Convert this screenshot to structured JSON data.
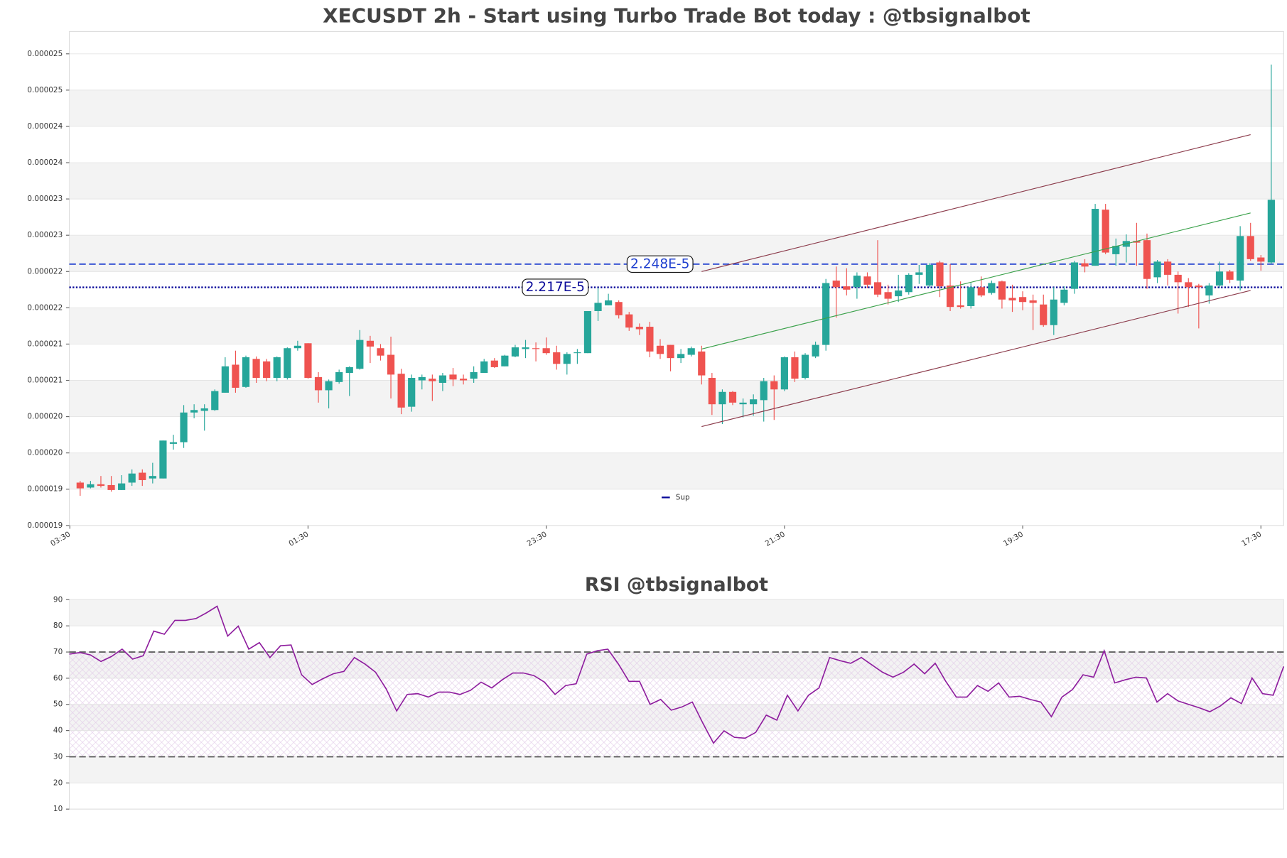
{
  "chart_data": [
    {
      "type": "candlestick",
      "title": "XECUSDT 2h - Start using Turbo Trade Bot today : @tbsignalbot",
      "up_color": "#26a69a",
      "down_color": "#ef5350",
      "open": [
        1.9565e-05,
        1.9499e-05,
        1.9543e-05,
        1.9532e-05,
        1.9466e-05,
        1.9565e-05,
        1.9697e-05,
        1.962e-05,
        1.962e-05,
        2.0082e-05,
        2.0104e-05,
        2.05e-05,
        2.0522e-05,
        2.0533e-05,
        2.0764e-05,
        2.1138e-05,
        2.0841e-05,
        2.1215e-05,
        2.1182e-05,
        2.0962e-05,
        2.0962e-05,
        2.1358e-05,
        2.1424e-05,
        2.0973e-05,
        2.0797e-05,
        2.0907e-05,
        2.1028e-05,
        2.1083e-05,
        2.1457e-05,
        2.1358e-05,
        2.127e-05,
        2.1017e-05,
        2.0577e-05,
        2.0929e-05,
        2.0951e-05,
        2.0896e-05,
        2.1006e-05,
        2.0951e-05,
        2.0951e-05,
        2.1028e-05,
        2.1193e-05,
        2.1116e-05,
        2.1248e-05,
        2.1347e-05,
        2.1358e-05,
        2.1358e-05,
        2.1303e-05,
        2.1149e-05,
        2.1292e-05,
        2.1292e-05,
        2.1853e-05,
        2.193e-05,
        2.1974e-05,
        2.1809e-05,
        2.1644e-05,
        2.1644e-05,
        2.1391e-05,
        2.1402e-05,
        2.1226e-05,
        2.127e-05,
        2.1314e-05,
        2.0962e-05,
        2.061e-05,
        2.0775e-05,
        2.061e-05,
        2.061e-05,
        2.0665e-05,
        2.0918e-05,
        2.0808e-05,
        2.1237e-05,
        2.0962e-05,
        2.1248e-05,
        2.1402e-05,
        2.226e-05,
        2.2183e-05,
        2.2172e-05,
        2.2315e-05,
        2.2238e-05,
        2.2106e-05,
        2.2051e-05,
        2.2106e-05,
        2.2337e-05,
        2.2194e-05,
        2.2502e-05,
        2.2194e-05,
        2.193e-05,
        2.1919e-05,
        2.2172e-05,
        2.2095e-05,
        2.2249e-05,
        2.2029e-05,
        2.204e-05,
        2.1996e-05,
        2.1941e-05,
        2.1666e-05,
        2.1963e-05,
        2.215e-05,
        2.2491e-05,
        2.2458e-05,
        2.3206e-05,
        2.2612e-05,
        2.2711e-05,
        2.2788e-05,
        2.2799e-05,
        2.2304e-05,
        2.2513e-05,
        2.2337e-05,
        2.2238e-05,
        2.2194e-05,
        2.2062e-05,
        2.2194e-05,
        2.2381e-05,
        2.226e-05,
        2.2854e-05,
        2.2568e-05,
        2.2502e-05
      ],
      "high": [
        1.9587e-05,
        1.9587e-05,
        1.9653e-05,
        1.9653e-05,
        1.9664e-05,
        1.9741e-05,
        1.9741e-05,
        1.9829e-05,
        2.0126e-05,
        2.0203e-05,
        2.0599e-05,
        2.061e-05,
        2.061e-05,
        2.0808e-05,
        2.1237e-05,
        2.1325e-05,
        2.1259e-05,
        2.1248e-05,
        2.1215e-05,
        2.1248e-05,
        2.1369e-05,
        2.1457e-05,
        2.1424e-05,
        2.1039e-05,
        2.094e-05,
        2.1072e-05,
        2.1116e-05,
        2.16e-05,
        2.1523e-05,
        2.1413e-05,
        2.1512e-05,
        2.1083e-05,
        2.1006e-05,
        2.1006e-05,
        2.1006e-05,
        2.1028e-05,
        2.1094e-05,
        2.1006e-05,
        2.1116e-05,
        2.1215e-05,
        2.1226e-05,
        2.127e-05,
        2.1402e-05,
        2.1468e-05,
        2.1435e-05,
        2.1501e-05,
        2.1391e-05,
        2.1303e-05,
        2.1347e-05,
        2.1853e-05,
        2.2161e-05,
        2.2084e-05,
        2.1996e-05,
        2.1842e-05,
        2.1688e-05,
        2.171e-05,
        2.1479e-05,
        2.1402e-05,
        2.1347e-05,
        2.138e-05,
        2.1391e-05,
        2.1028e-05,
        2.0808e-05,
        2.0786e-05,
        2.0687e-05,
        2.0742e-05,
        2.0962e-05,
        2.0995e-05,
        2.1248e-05,
        2.1314e-05,
        2.1292e-05,
        2.1446e-05,
        2.2282e-05,
        2.2447e-05,
        2.2425e-05,
        2.237e-05,
        2.237e-05,
        2.2799e-05,
        2.2205e-05,
        2.2337e-05,
        2.2359e-05,
        2.2469e-05,
        2.2491e-05,
        2.2524e-05,
        2.248e-05,
        2.2249e-05,
        2.2227e-05,
        2.2315e-05,
        2.226e-05,
        2.226e-05,
        2.2205e-05,
        2.2117e-05,
        2.2073e-05,
        2.2073e-05,
        2.2172e-05,
        2.2183e-05,
        2.2524e-05,
        2.2546e-05,
        2.3283e-05,
        2.3283e-05,
        2.2821e-05,
        2.2876e-05,
        2.303e-05,
        2.2887e-05,
        2.2535e-05,
        2.2546e-05,
        2.2381e-05,
        2.2293e-05,
        2.2216e-05,
        2.2227e-05,
        2.2513e-05,
        2.2403e-05,
        2.2986e-05,
        2.303e-05,
        2.2601e-05,
        2.5142e-05
      ],
      "low": [
        1.9389e-05,
        1.9488e-05,
        1.9499e-05,
        1.9444e-05,
        1.9466e-05,
        1.9521e-05,
        1.9521e-05,
        1.9554e-05,
        1.962e-05,
        2.0005e-05,
        2.0027e-05,
        2.0423e-05,
        2.0258e-05,
        2.0522e-05,
        2.0764e-05,
        2.0764e-05,
        2.083e-05,
        2.0896e-05,
        2.0918e-05,
        2.0918e-05,
        2.094e-05,
        2.1325e-05,
        2.0951e-05,
        2.0632e-05,
        2.0555e-05,
        2.0885e-05,
        2.072e-05,
        2.1072e-05,
        2.116e-05,
        2.1193e-05,
        2.0687e-05,
        2.0478e-05,
        2.0511e-05,
        2.0808e-05,
        2.0654e-05,
        2.0786e-05,
        2.0852e-05,
        2.0874e-05,
        2.0896e-05,
        2.1028e-05,
        2.1094e-05,
        2.1116e-05,
        2.1237e-05,
        2.1226e-05,
        2.1182e-05,
        2.127e-05,
        2.1072e-05,
        2.1006e-05,
        2.1149e-05,
        2.1292e-05,
        2.1721e-05,
        2.193e-05,
        2.1754e-05,
        2.1589e-05,
        2.1534e-05,
        2.1237e-05,
        2.1215e-05,
        2.105e-05,
        2.116e-05,
        2.1248e-05,
        2.0874e-05,
        2.0467e-05,
        2.0346e-05,
        2.0599e-05,
        2.0434e-05,
        2.0456e-05,
        2.0379e-05,
        2.0401e-05,
        2.0786e-05,
        2.0907e-05,
        2.094e-05,
        2.1226e-05,
        2.1325e-05,
        2.1765e-05,
        2.2062e-05,
        2.2018e-05,
        2.2161e-05,
        2.204e-05,
        2.1941e-05,
        2.1974e-05,
        2.2073e-05,
        2.2216e-05,
        2.2172e-05,
        2.204e-05,
        2.1853e-05,
        2.1886e-05,
        2.1886e-05,
        2.204e-05,
        2.2073e-05,
        2.1886e-05,
        2.1842e-05,
        2.1864e-05,
        2.16e-05,
        2.1644e-05,
        2.1534e-05,
        2.193e-05,
        2.2084e-05,
        2.237e-05,
        2.2458e-05,
        2.2612e-05,
        2.2458e-05,
        2.2502e-05,
        2.2458e-05,
        2.215e-05,
        2.2227e-05,
        2.2194e-05,
        2.182e-05,
        2.1908e-05,
        2.1622e-05,
        2.1952e-05,
        2.2161e-05,
        2.2227e-05,
        2.2128e-05,
        2.2524e-05,
        2.2392e-05,
        2.248e-05
      ],
      "close": [
        1.9488e-05,
        1.9543e-05,
        1.9521e-05,
        1.9466e-05,
        1.9554e-05,
        1.9686e-05,
        1.9598e-05,
        1.9653e-05,
        2.0126e-05,
        2.0104e-05,
        2.05e-05,
        2.0533e-05,
        2.0555e-05,
        2.0786e-05,
        2.1116e-05,
        2.083e-05,
        2.1237e-05,
        2.0962e-05,
        2.0962e-05,
        2.1237e-05,
        2.1358e-05,
        2.1391e-05,
        2.0962e-05,
        2.0797e-05,
        2.0918e-05,
        2.1039e-05,
        2.1105e-05,
        2.1468e-05,
        2.138e-05,
        2.1259e-05,
        2.1006e-05,
        2.0566e-05,
        2.0962e-05,
        2.0973e-05,
        2.0918e-05,
        2.0995e-05,
        2.094e-05,
        2.0929e-05,
        2.1039e-05,
        2.1182e-05,
        2.1105e-05,
        2.1259e-05,
        2.1369e-05,
        2.1369e-05,
        2.1347e-05,
        2.1292e-05,
        2.1149e-05,
        2.1281e-05,
        2.1303e-05,
        2.1853e-05,
        2.1963e-05,
        2.1996e-05,
        2.1798e-05,
        2.1633e-05,
        2.1611e-05,
        2.1314e-05,
        2.1281e-05,
        2.1226e-05,
        2.1281e-05,
        2.1358e-05,
        2.0995e-05,
        2.061e-05,
        2.0775e-05,
        2.0632e-05,
        2.0632e-05,
        2.0676e-05,
        2.0918e-05,
        2.0808e-05,
        2.1237e-05,
        2.0951e-05,
        2.127e-05,
        2.1402e-05,
        2.2227e-05,
        2.2172e-05,
        2.2139e-05,
        2.2326e-05,
        2.2205e-05,
        2.2073e-05,
        2.2018e-05,
        2.2128e-05,
        2.2337e-05,
        2.237e-05,
        2.2469e-05,
        2.2183e-05,
        2.1908e-05,
        2.1908e-05,
        2.2172e-05,
        2.2062e-05,
        2.2227e-05,
        2.2007e-05,
        2.1996e-05,
        2.1974e-05,
        2.1963e-05,
        2.1666e-05,
        2.2007e-05,
        2.2139e-05,
        2.2502e-05,
        2.2447e-05,
        2.3217e-05,
        2.2634e-05,
        2.2722e-05,
        2.2788e-05,
        2.2766e-05,
        2.2282e-05,
        2.2513e-05,
        2.2337e-05,
        2.2238e-05,
        2.2172e-05,
        2.2172e-05,
        2.2194e-05,
        2.2381e-05,
        2.2271e-05,
        2.2854e-05,
        2.2546e-05,
        2.2513e-05,
        2.3338e-05
      ],
      "xlim": [
        -1.05,
        116.2
      ],
      "xticks": [
        {
          "value": -1,
          "label": "03:30"
        },
        {
          "value": 22,
          "label": "01:30"
        },
        {
          "value": 45,
          "label": "23:30"
        },
        {
          "value": 68,
          "label": "21:30"
        },
        {
          "value": 91,
          "label": "19:30"
        },
        {
          "value": 114,
          "label": "17:30"
        }
      ],
      "ylim": [
        1.8993e-05,
        2.5582e-05
      ],
      "yticks": [
        {
          "value": 1.8993e-05,
          "label": "0.000019"
        },
        {
          "value": 1.9477e-05,
          "label": "0.000019"
        },
        {
          "value": 1.9961e-05,
          "label": "0.000020"
        },
        {
          "value": 2.0445e-05,
          "label": "0.000020"
        },
        {
          "value": 2.0929e-05,
          "label": "0.000021"
        },
        {
          "value": 2.1413e-05,
          "label": "0.000021"
        },
        {
          "value": 2.1897e-05,
          "label": "0.000022"
        },
        {
          "value": 2.2381e-05,
          "label": "0.000022"
        },
        {
          "value": 2.2865e-05,
          "label": "0.000023"
        },
        {
          "value": 2.3349e-05,
          "label": "0.000023"
        },
        {
          "value": 2.3833e-05,
          "label": "0.000024"
        },
        {
          "value": 2.4317e-05,
          "label": "0.000024"
        },
        {
          "value": 2.4801e-05,
          "label": "0.000025"
        },
        {
          "value": 2.5285e-05,
          "label": "0.000025"
        }
      ],
      "grid": true,
      "hlines": [
        {
          "value": 2.248e-05,
          "label": "2.248E-5",
          "color": "#1f3fcf",
          "style": "dashed"
        },
        {
          "value": 2.217e-05,
          "label": "2.217E-5",
          "name": "Sup",
          "color": "#0a0a9a",
          "style": "dotted"
        }
      ],
      "lines": [
        {
          "color": "#8b3a4a",
          "x": [
            60,
            113
          ],
          "values": [
            2.2381e-05,
            2.4207e-05
          ]
        },
        {
          "color": "#3aa14a",
          "x": [
            60,
            113
          ],
          "values": [
            2.1347e-05,
            2.3162e-05
          ]
        },
        {
          "color": "#8b3a4a",
          "x": [
            60,
            113
          ],
          "values": [
            2.0313e-05,
            2.2128e-05
          ]
        }
      ],
      "legend": "lower center"
    },
    {
      "type": "line",
      "title": "RSI @tbsignalbot",
      "color": "#8e1d9e",
      "values": [
        69.2,
        69.8,
        68.9,
        66.4,
        68.3,
        71.1,
        67.3,
        68.6,
        78,
        76.8,
        82.1,
        82.1,
        82.8,
        85,
        87.5,
        76.1,
        79.9,
        71.1,
        73.6,
        67.9,
        72.4,
        72.7,
        61.3,
        57.6,
        59.8,
        61.7,
        62.6,
        67.9,
        65.4,
        62.3,
        56,
        47.5,
        53.8,
        54.1,
        52.8,
        54.7,
        54.7,
        53.8,
        55.4,
        58.5,
        56.3,
        59.4,
        62,
        62,
        61,
        58.5,
        53.8,
        57.2,
        57.9,
        69.2,
        70.5,
        71.1,
        65.4,
        58.8,
        58.8,
        50,
        51.9,
        47.8,
        49,
        50.9,
        42.8,
        35.2,
        39.9,
        37.4,
        37.1,
        39.3,
        45.9,
        44,
        53.5,
        47.5,
        53.5,
        56.3,
        67.9,
        66.7,
        65.7,
        67.9,
        65.1,
        62.3,
        60.4,
        62.3,
        65.4,
        61.7,
        65.7,
        58.8,
        52.8,
        52.8,
        57.2,
        55,
        58.2,
        52.8,
        53.1,
        51.9,
        50.9,
        45.3,
        52.8,
        55.7,
        61.3,
        60.4,
        70.5,
        58.2,
        59.4,
        60.4,
        60.1,
        50.9,
        54.1,
        51.3,
        50,
        48.7,
        47.2,
        49.4,
        52.5,
        50.3,
        60.1,
        54.1,
        53.5,
        64.5
      ],
      "ylim": [
        10,
        90
      ],
      "yticks": [
        10,
        20,
        30,
        40,
        50,
        60,
        70,
        80,
        90
      ],
      "grid": true,
      "band": [
        30,
        70
      ],
      "hlines": [
        {
          "value": 30,
          "color": "#555555",
          "style": "dashed"
        },
        {
          "value": 70,
          "color": "#555555",
          "style": "dashed"
        }
      ]
    }
  ]
}
